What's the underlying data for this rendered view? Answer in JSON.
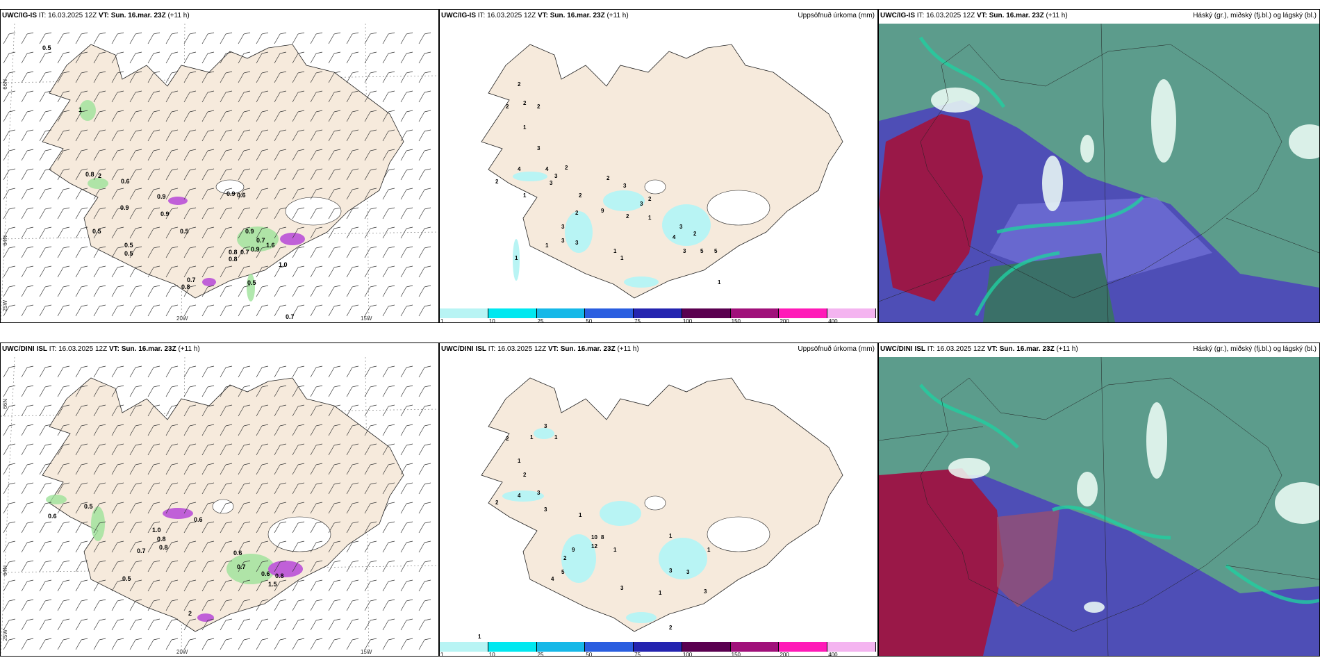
{
  "rows": [
    {
      "model": "UWC/IG-IS",
      "it_label": "IT:",
      "it_value": "16.03.2025 12Z",
      "vt_label": "VT:",
      "vt_value": "Sun. 16.mar. 23Z",
      "lead": "(+11 h)"
    },
    {
      "model": "UWC/DINI ISL",
      "it_label": "IT:",
      "it_value": "16.03.2025 12Z",
      "vt_label": "VT:",
      "vt_value": "Sun. 16.mar. 23Z",
      "lead": "(+11 h)"
    }
  ],
  "precip_title": "Uppsöfnuð úrkoma (mm)",
  "cloud_title": "Háský (gr.), miðský (fj.bl.) og lágský (bl.)",
  "grid_labels": {
    "lat66": "66N",
    "lat64": "64N",
    "lon25": "25W",
    "lon20": "20W",
    "lon15": "15W"
  },
  "legend": {
    "ticks": [
      "1",
      "10",
      "25",
      "50",
      "75",
      "100",
      "150",
      "200",
      "400"
    ],
    "colors": [
      "#b8f4f4",
      "#00e8f0",
      "#16b8e8",
      "#2a5ee0",
      "#2424b0",
      "#5a0050",
      "#a0107a",
      "#ff1ab8",
      "#f4b4f0"
    ]
  },
  "colors": {
    "land": "#f6eadc",
    "sea": "#ffffff",
    "precip_light": "#b8f4f4",
    "cloud_high": "#5c9c8c",
    "cloud_mid": "#5050b8",
    "cloud_low": "#9a1848",
    "cloud_edge": "#20d0a0"
  },
  "precip_values": {
    "r0": [
      "0.5",
      "1",
      "0.8",
      "2",
      "0.6",
      "0.9",
      "0.5",
      "0.5",
      "0.5",
      "0.5",
      "0.9",
      "0.9",
      "0.6",
      "0.9",
      "0.7",
      "0.8",
      "0.8",
      "0.7",
      "0.9",
      "1.6",
      "1.0",
      "0.5",
      "0.7",
      "0.8",
      "0.9",
      "0.7"
    ],
    "r1": [
      "0.5",
      "0.6",
      "0.8",
      "0.7",
      "0.8",
      "1.0",
      "0.6",
      "0.6",
      "0.7",
      "0.6",
      "0.5",
      "1.5",
      "2",
      "0.8"
    ]
  },
  "accum_values": {
    "r0": [
      "2",
      "2",
      "2",
      "2",
      "1",
      "3",
      "4",
      "2",
      "3",
      "2",
      "4",
      "3",
      "1",
      "3",
      "2",
      "3",
      "1",
      "3",
      "2",
      "2",
      "1",
      "3",
      "5",
      "2",
      "1",
      "1",
      "1",
      "4",
      "3",
      "2",
      "3",
      "5",
      "1",
      "2",
      "3",
      "9"
    ],
    "r1": [
      "3",
      "2",
      "1",
      "1",
      "1",
      "2",
      "3",
      "4",
      "2",
      "1",
      "3",
      "9",
      "2",
      "5",
      "4",
      "10",
      "12",
      "8",
      "1",
      "1",
      "1",
      "3",
      "3",
      "3",
      "1",
      "3",
      "2",
      "1"
    ]
  }
}
